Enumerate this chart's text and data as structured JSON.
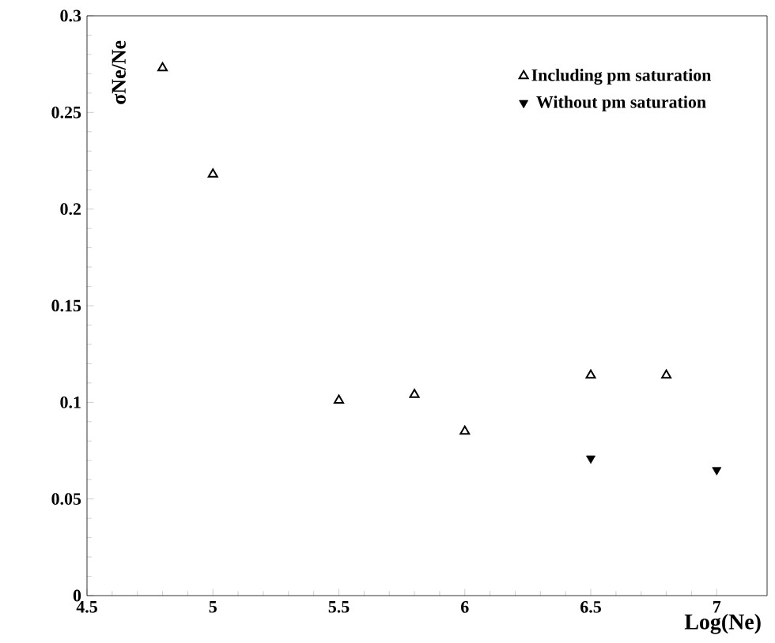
{
  "chart_data": {
    "type": "scatter",
    "xlabel": "Log(Ne)",
    "ylabel": "σNe/Ne",
    "xlim": [
      4.5,
      7.2
    ],
    "xticks": [
      4.5,
      5,
      5.5,
      6,
      6.5,
      7
    ],
    "ylim": [
      0,
      0.3
    ],
    "yticks": [
      0,
      0.05,
      0.1,
      0.15,
      0.2,
      0.25,
      0.3
    ],
    "legend": "top right",
    "grid": false,
    "series": [
      {
        "name": "Including pm saturation",
        "color": "#000000",
        "marker": "triangle",
        "x": [
          4.8,
          5.0,
          5.5,
          5.8,
          6.0,
          6.5,
          6.8
        ],
        "values": [
          0.273,
          0.218,
          0.101,
          0.104,
          0.085,
          0.114,
          0.114
        ]
      },
      {
        "name": "Without pm saturation",
        "color": "#000000",
        "marker": "triangle-down",
        "x": [
          6.5,
          7.0
        ],
        "values": [
          0.071,
          0.065
        ]
      }
    ]
  }
}
